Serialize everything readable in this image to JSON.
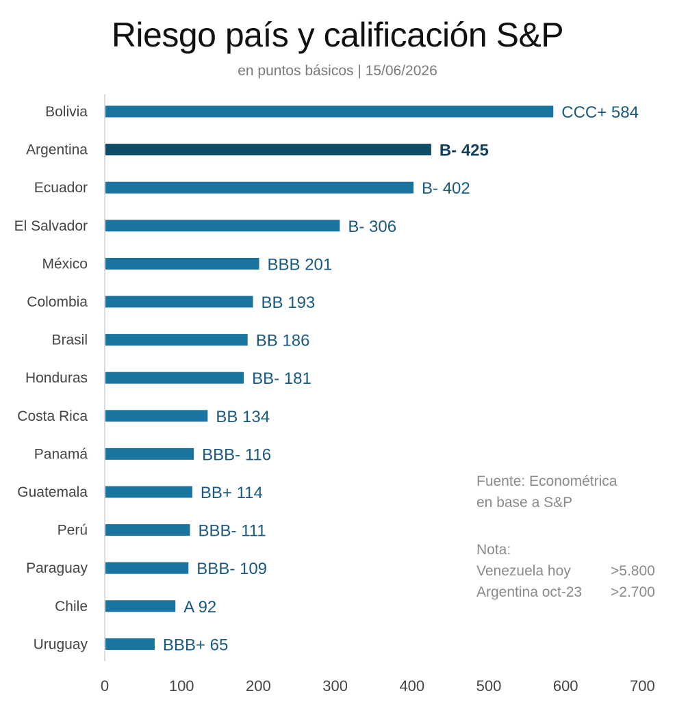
{
  "chart_data": {
    "type": "bar",
    "orientation": "horizontal",
    "title": "Riesgo país y calificación S&P",
    "subtitle": "en puntos básicos | 15/06/2026",
    "categories": [
      "Bolivia",
      "Argentina",
      "Ecuador",
      "El Salvador",
      "México",
      "Colombia",
      "Brasil",
      "Honduras",
      "Costa Rica",
      "Panamá",
      "Guatemala",
      "Perú",
      "Paraguay",
      "Chile",
      "Uruguay"
    ],
    "values": [
      584,
      425,
      402,
      306,
      201,
      193,
      186,
      181,
      134,
      116,
      114,
      111,
      109,
      92,
      65
    ],
    "ratings": [
      "CCC+",
      "B-",
      "B-",
      "B-",
      "BBB",
      "BB",
      "BB",
      "BB-",
      "BB",
      "BBB-",
      "BB+",
      "BBB-",
      "BBB-",
      "A",
      "BBB+"
    ],
    "highlight": "Argentina",
    "xlim": [
      0,
      700
    ],
    "xticks": [
      "0",
      "100",
      "200",
      "300",
      "400",
      "500",
      "600",
      "700"
    ],
    "grid": false,
    "colors": {
      "bar": "#1a74a0",
      "highlight": "#0f4a66"
    }
  },
  "notes": {
    "source_line1": "Fuente: Econométrica",
    "source_line2": "en base a S&P",
    "note_title": "Nota:",
    "items": [
      {
        "label": "Venezuela hoy",
        "value": ">5.800"
      },
      {
        "label": "Argentina oct-23",
        "value": ">2.700"
      }
    ]
  }
}
